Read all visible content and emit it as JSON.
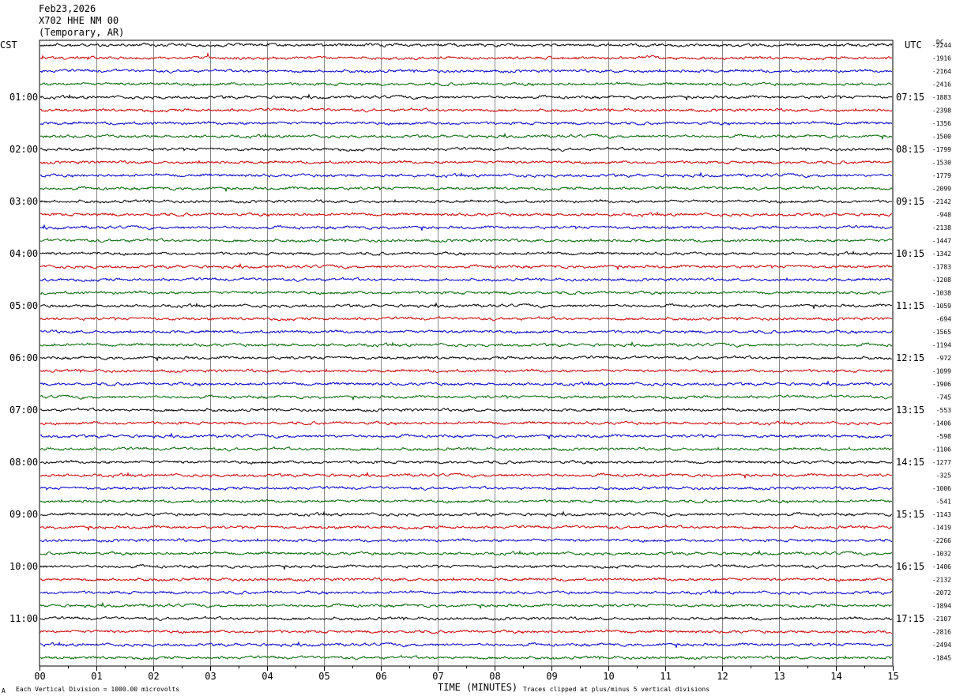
{
  "header": {
    "date": "Feb23,2026",
    "station": "X702 HHE NM 00",
    "location": "(Temporary, AR)"
  },
  "left_axis_label": "CST",
  "right_axis_label": "UTC",
  "dc_label": "DC",
  "footer": {
    "scale_note": "Each Vertical Division = 1000.00 microvolts",
    "clip_note": "Traces clipped at plus/minus 5 vertical divisions",
    "marker": "A"
  },
  "chart_data": {
    "type": "line",
    "title": "",
    "xlabel": "TIME (MINUTES)",
    "xlim": [
      0,
      15
    ],
    "x_ticks": [
      "00",
      "01",
      "02",
      "03",
      "04",
      "05",
      "06",
      "07",
      "08",
      "09",
      "10",
      "11",
      "12",
      "13",
      "14",
      "15"
    ],
    "left_time_labels": [
      "01:00",
      "02:00",
      "03:00",
      "04:00",
      "05:00",
      "06:00",
      "07:00",
      "08:00",
      "09:00",
      "10:00",
      "11:00"
    ],
    "right_time_labels": [
      "07:15",
      "08:15",
      "09:15",
      "10:15",
      "11:15",
      "12:15",
      "13:15",
      "14:15",
      "15:15",
      "16:15",
      "17:15"
    ],
    "trace_colors": [
      "#000000",
      "#cc0000",
      "#0000cc",
      "#006600"
    ],
    "dc_offsets": [
      "-2244",
      "-1916",
      "-2164",
      "-2416",
      "-1883",
      "-2398",
      "-1356",
      "-1500",
      "-1799",
      "-1530",
      "-1779",
      "-2099",
      "-2142",
      "-948",
      "-2138",
      "-1447",
      "-1342",
      "-1783",
      "-1208",
      "-1038",
      "-1059",
      "-694",
      "-1565",
      "-1194",
      "-972",
      "-1099",
      "-1906",
      "-745",
      "-553",
      "-1406",
      "-598",
      "-1106",
      "-1277",
      "-325",
      "-1006",
      "-541",
      "-1143",
      "-1419",
      "-2266",
      "-1032",
      "-1406",
      "-2132",
      "-2072",
      "-1894",
      "-2107",
      "-2816",
      "-2494",
      "-1845"
    ],
    "grid": true
  }
}
